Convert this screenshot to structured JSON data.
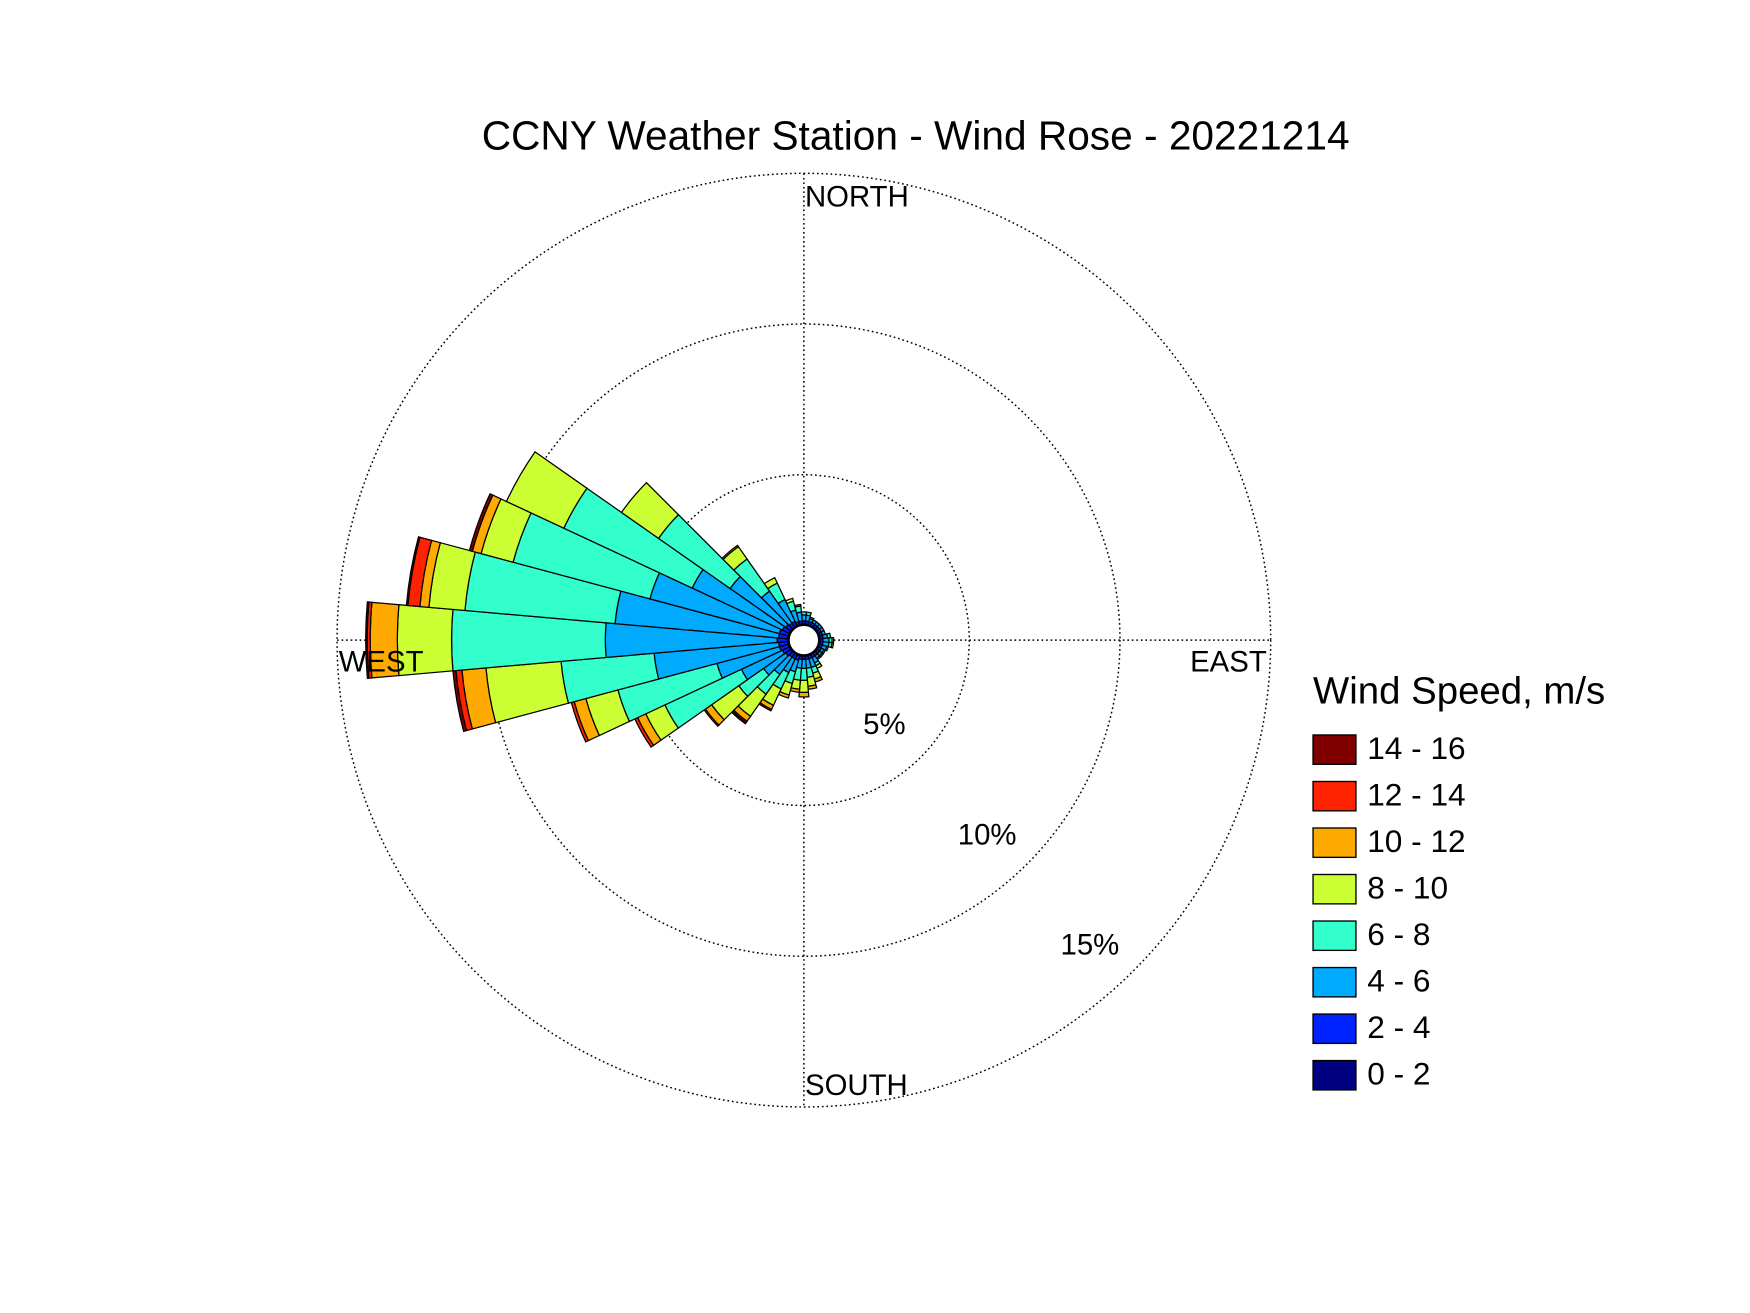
{
  "chart_data": {
    "type": "windrose",
    "title": "CCNY Weather Station - Wind Rose - 20221214",
    "direction_labels": {
      "north": "NORTH",
      "east": "EAST",
      "south": "SOUTH",
      "west": "WEST"
    },
    "legend_title": "Wind Speed, m/s",
    "legend": "right",
    "grid": true,
    "rlim": [
      0,
      15
    ],
    "rticks": [
      {
        "value": 5,
        "label": "5%"
      },
      {
        "value": 10,
        "label": "10%"
      },
      {
        "value": 15,
        "label": "15%"
      }
    ],
    "series": [
      {
        "name": "0 - 2",
        "color": "#000080",
        "values": [
          0.05,
          0.05,
          0.05,
          0.05,
          0.05,
          0.05,
          0.05,
          0.05,
          0.05,
          0.05,
          0.05,
          0.05,
          0.05,
          0.05,
          0.05,
          0.05,
          0.05,
          0.05,
          0.05,
          0.05,
          0.05,
          0.05,
          0.05,
          0.05,
          0.05,
          0.05,
          0.05,
          0.05,
          0.05,
          0.05,
          0.05,
          0.05,
          0.05,
          0.05,
          0.05,
          0.05
        ]
      },
      {
        "name": "2 - 4",
        "color": "#0022ff",
        "values": [
          0.1,
          0.1,
          0.1,
          0.1,
          0.1,
          0.1,
          0.1,
          0.1,
          0.1,
          0.1,
          0.1,
          0.1,
          0.1,
          0.1,
          0.1,
          0.1,
          0.1,
          0.1,
          0.1,
          0.1,
          0.15,
          0.15,
          0.15,
          0.2,
          0.25,
          0.3,
          0.3,
          0.35,
          0.3,
          0.3,
          0.25,
          0.2,
          0.15,
          0.15,
          0.1,
          0.1
        ]
      },
      {
        "name": "4 - 6",
        "color": "#00aaff",
        "values": [
          0.2,
          0.2,
          0.1,
          0.1,
          0.1,
          0.1,
          0.1,
          0.1,
          0.15,
          0.2,
          0.2,
          0.15,
          0.1,
          0.1,
          0.1,
          0.2,
          0.3,
          0.3,
          0.3,
          0.3,
          0.4,
          0.5,
          0.7,
          0.9,
          1.5,
          2.15,
          4.15,
          5.7,
          5.45,
          4.45,
          3.3,
          2.25,
          1.3,
          0.8,
          0.4,
          0.3
        ]
      },
      {
        "name": "6 - 8",
        "color": "#33ffcc",
        "values": [
          0.1,
          0.1,
          0.05,
          0,
          0,
          0,
          0,
          0,
          0.1,
          0.1,
          0.1,
          0.05,
          0.05,
          0.05,
          0.05,
          0.1,
          0.2,
          0.3,
          0.4,
          0.4,
          0.4,
          0.6,
          0.8,
          1.0,
          2.8,
          3.4,
          3.1,
          5.1,
          5.0,
          4.7,
          4.7,
          2.9,
          1.3,
          0.6,
          0.3,
          0.2
        ]
      },
      {
        "name": "8 - 10",
        "color": "#ccff33",
        "values": [
          0,
          0,
          0,
          0,
          0,
          0,
          0,
          0,
          0,
          0.05,
          0.05,
          0,
          0,
          0,
          0,
          0.1,
          0.2,
          0.3,
          0.4,
          0.3,
          0.4,
          0.6,
          0.9,
          1.1,
          0.7,
          1.1,
          2.5,
          1.8,
          1.2,
          1.1,
          2.1,
          1.5,
          0.5,
          0.2,
          0.1,
          0.05
        ]
      },
      {
        "name": "10 - 12",
        "color": "#ffaa00",
        "values": [
          0,
          0,
          0,
          0,
          0,
          0,
          0,
          0,
          0,
          0,
          0,
          0,
          0,
          0,
          0,
          0,
          0.1,
          0.1,
          0.15,
          0.1,
          0.1,
          0.15,
          0.2,
          0.25,
          0.3,
          0.4,
          0.8,
          0.9,
          0.3,
          0.3,
          0,
          0,
          0.05,
          0,
          0,
          0
        ]
      },
      {
        "name": "12 - 14",
        "color": "#ff2200",
        "values": [
          0,
          0,
          0,
          0,
          0,
          0,
          0,
          0,
          0,
          0,
          0,
          0,
          0,
          0,
          0,
          0,
          0,
          0,
          0,
          0,
          0,
          0.05,
          0.05,
          0.05,
          0.1,
          0.1,
          0.2,
          0.1,
          0.4,
          0,
          0,
          0,
          0,
          0,
          0,
          0
        ]
      },
      {
        "name": "14 - 16",
        "color": "#800000",
        "values": [
          0,
          0,
          0,
          0,
          0,
          0,
          0,
          0,
          0,
          0,
          0,
          0,
          0,
          0,
          0,
          0,
          0,
          0,
          0,
          0,
          0,
          0,
          0.05,
          0,
          0,
          0,
          0.1,
          0.05,
          0.05,
          0.1,
          0,
          0,
          0,
          0,
          0,
          0
        ]
      }
    ]
  }
}
